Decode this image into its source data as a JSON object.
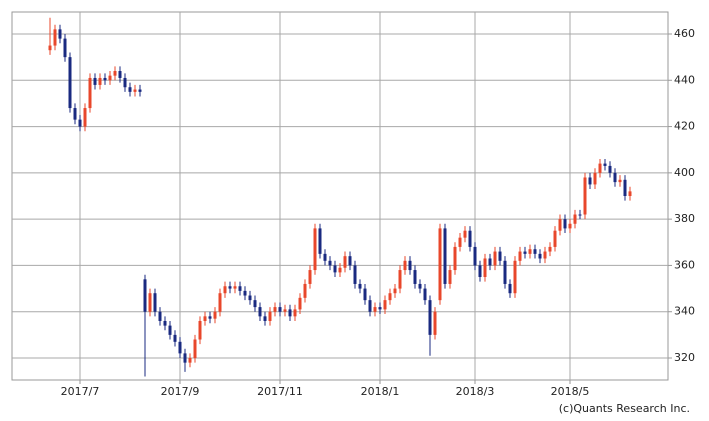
{
  "chart_data": {
    "type": "candlestick",
    "open": [
      453,
      455,
      462,
      458,
      450,
      428,
      423,
      420,
      428,
      441,
      438,
      441,
      440,
      442,
      444,
      441,
      437,
      435,
      436,
      354,
      340,
      348,
      340,
      336,
      334,
      330,
      327,
      322,
      318,
      320,
      328,
      336,
      338,
      337,
      340,
      348,
      351,
      350,
      351,
      349,
      347,
      345,
      342,
      338,
      336,
      340,
      342,
      340,
      341,
      338,
      341,
      346,
      352,
      358,
      376,
      365,
      362,
      360,
      357,
      359,
      364,
      360,
      352,
      350,
      345,
      340,
      342,
      341,
      345,
      348,
      350,
      358,
      362,
      358,
      352,
      350,
      345,
      330,
      345,
      376,
      352,
      358,
      368,
      372,
      375,
      368,
      360,
      355,
      363,
      360,
      366,
      362,
      352,
      348,
      362,
      366,
      365,
      367,
      365,
      363,
      366,
      368,
      375,
      380,
      376,
      378,
      382,
      382,
      398,
      395,
      400,
      404,
      403,
      400,
      396,
      397,
      390
    ],
    "high": [
      467,
      464,
      464,
      460,
      452,
      430,
      425,
      430,
      443,
      443,
      443,
      443,
      444,
      446,
      446,
      443,
      439,
      438,
      438,
      356,
      350,
      350,
      342,
      338,
      336,
      332,
      329,
      324,
      322,
      330,
      338,
      340,
      340,
      342,
      350,
      353,
      353,
      353,
      353,
      351,
      349,
      347,
      344,
      340,
      342,
      344,
      344,
      343,
      343,
      343,
      348,
      354,
      360,
      378,
      378,
      367,
      364,
      362,
      361,
      366,
      366,
      362,
      354,
      352,
      347,
      344,
      344,
      347,
      350,
      352,
      360,
      364,
      364,
      360,
      354,
      352,
      347,
      342,
      378,
      378,
      360,
      370,
      374,
      377,
      377,
      370,
      362,
      365,
      365,
      368,
      368,
      364,
      354,
      364,
      368,
      368,
      369,
      369,
      367,
      368,
      370,
      377,
      382,
      382,
      380,
      384,
      384,
      400,
      400,
      402,
      406,
      406,
      405,
      402,
      399,
      399,
      394
    ],
    "low": [
      451,
      453,
      456,
      448,
      426,
      421,
      418,
      418,
      426,
      436,
      436,
      438,
      438,
      440,
      439,
      435,
      433,
      433,
      433,
      312,
      338,
      338,
      334,
      332,
      328,
      325,
      320,
      314,
      316,
      318,
      326,
      334,
      335,
      335,
      338,
      346,
      348,
      348,
      347,
      345,
      343,
      340,
      336,
      334,
      334,
      338,
      338,
      338,
      336,
      336,
      339,
      344,
      350,
      356,
      363,
      360,
      358,
      355,
      355,
      357,
      358,
      350,
      348,
      343,
      338,
      338,
      339,
      339,
      343,
      346,
      348,
      356,
      356,
      350,
      348,
      343,
      321,
      328,
      343,
      350,
      350,
      356,
      366,
      370,
      366,
      358,
      353,
      353,
      358,
      358,
      360,
      350,
      346,
      346,
      360,
      363,
      363,
      363,
      361,
      361,
      364,
      366,
      373,
      374,
      374,
      376,
      380,
      380,
      393,
      393,
      398,
      401,
      398,
      394,
      394,
      388,
      388
    ],
    "close": [
      455,
      462,
      458,
      450,
      428,
      423,
      420,
      428,
      441,
      438,
      441,
      440,
      442,
      444,
      441,
      437,
      435,
      436,
      435,
      340,
      348,
      340,
      336,
      334,
      330,
      327,
      322,
      318,
      320,
      328,
      336,
      338,
      337,
      340,
      348,
      351,
      350,
      351,
      349,
      347,
      345,
      342,
      338,
      336,
      340,
      342,
      340,
      341,
      338,
      341,
      346,
      352,
      358,
      376,
      365,
      362,
      360,
      357,
      359,
      364,
      360,
      352,
      350,
      345,
      340,
      342,
      341,
      345,
      348,
      350,
      358,
      362,
      358,
      352,
      350,
      345,
      330,
      340,
      376,
      352,
      358,
      368,
      372,
      375,
      368,
      360,
      355,
      363,
      360,
      366,
      362,
      352,
      348,
      362,
      366,
      365,
      367,
      365,
      363,
      366,
      368,
      375,
      380,
      376,
      378,
      382,
      382,
      398,
      395,
      400,
      404,
      403,
      400,
      396,
      397,
      390,
      392
    ],
    "up_color": "#e8472b",
    "down_color": "#1a2a80",
    "xlim": [
      -7.6,
      123.6
    ],
    "xticks": [
      {
        "value": 6,
        "label": "2017/7"
      },
      {
        "value": 26,
        "label": "2017/9"
      },
      {
        "value": 46,
        "label": "2017/11"
      },
      {
        "value": 66,
        "label": "2018/1"
      },
      {
        "value": 85,
        "label": "2018/3"
      },
      {
        "value": 104,
        "label": "2018/5"
      }
    ],
    "ylim": [
      310.5,
      469.5
    ],
    "yticks": [
      320,
      340,
      360,
      380,
      400,
      420,
      440,
      460
    ],
    "grid": true,
    "footer": "(c)Quants Research Inc."
  }
}
